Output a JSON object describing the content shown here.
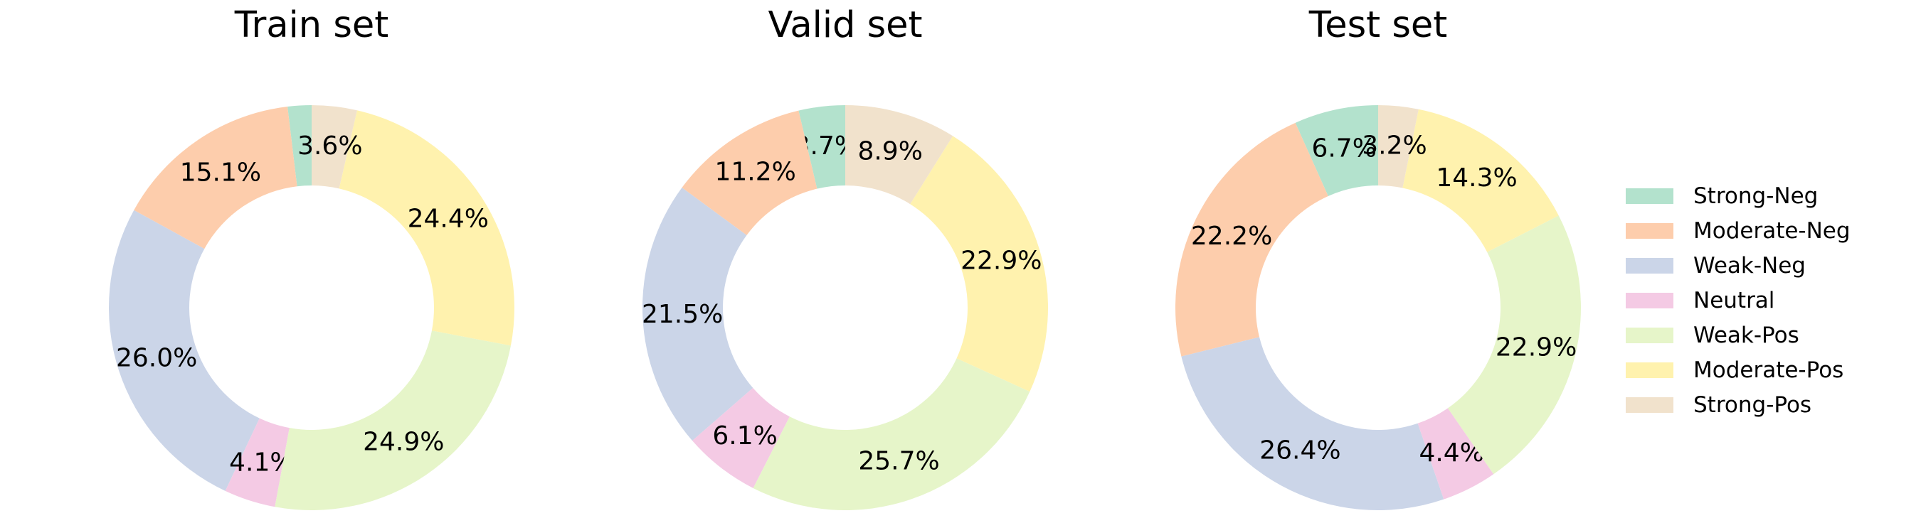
{
  "figure": {
    "background": "#ffffff",
    "text_color": "#000000"
  },
  "legend": {
    "position": "right",
    "entries": [
      {
        "label": "Strong-Neg",
        "color": "#b3e2cd"
      },
      {
        "label": "Moderate-Neg",
        "color": "#fdcdac"
      },
      {
        "label": "Weak-Neg",
        "color": "#cbd5e8"
      },
      {
        "label": "Neutral",
        "color": "#f4cae4"
      },
      {
        "label": "Weak-Pos",
        "color": "#e6f5c9"
      },
      {
        "label": "Moderate-Pos",
        "color": "#fff2ae"
      },
      {
        "label": "Strong-Pos",
        "color": "#f1e2cc"
      }
    ]
  },
  "chart_data": [
    {
      "type": "pie",
      "subtype": "donut",
      "title": "Train set",
      "start_angle": 90,
      "direction": "counterclockwise",
      "categories": [
        "Strong-Neg",
        "Moderate-Neg",
        "Weak-Neg",
        "Neutral",
        "Weak-Pos",
        "Moderate-Pos",
        "Strong-Pos"
      ],
      "values": [
        1.9,
        15.1,
        26.0,
        4.1,
        24.9,
        24.4,
        3.6
      ],
      "labels": [
        "",
        "15.1%",
        "26.0%",
        "4.1%",
        "24.9%",
        "24.4%",
        "3.6%"
      ]
    },
    {
      "type": "pie",
      "subtype": "donut",
      "title": "Valid set",
      "start_angle": 90,
      "direction": "counterclockwise",
      "categories": [
        "Strong-Neg",
        "Moderate-Neg",
        "Weak-Neg",
        "Neutral",
        "Weak-Pos",
        "Moderate-Pos",
        "Strong-Pos"
      ],
      "values": [
        3.7,
        11.2,
        21.5,
        6.1,
        25.7,
        22.9,
        8.9
      ],
      "labels": [
        "3.7%",
        "11.2%",
        "21.5%",
        "6.1%",
        "25.7%",
        "22.9%",
        "8.9%"
      ]
    },
    {
      "type": "pie",
      "subtype": "donut",
      "title": "Test set",
      "start_angle": 90,
      "direction": "counterclockwise",
      "categories": [
        "Strong-Neg",
        "Moderate-Neg",
        "Weak-Neg",
        "Neutral",
        "Weak-Pos",
        "Moderate-Pos",
        "Strong-Pos"
      ],
      "values": [
        6.7,
        22.2,
        26.4,
        4.4,
        22.9,
        14.3,
        3.2
      ],
      "labels": [
        "6.7%",
        "22.2%",
        "26.4%",
        "4.4%",
        "22.9%",
        "14.3%",
        "3.2%"
      ]
    }
  ]
}
